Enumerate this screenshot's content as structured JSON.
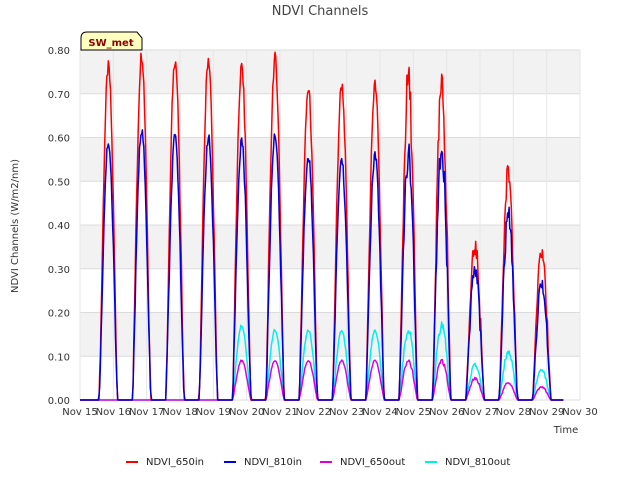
{
  "chart_data": {
    "type": "line",
    "title": "NDVI Channels",
    "xlabel": "Time",
    "ylabel": "NDVI Channels (W/m2/nm)",
    "badge": "SW_met",
    "ylim": [
      0,
      0.8
    ],
    "xlim": [
      15,
      30
    ],
    "grid": true,
    "legend_position": "bottom",
    "x_ticks": [
      "Nov 15",
      "Nov 16",
      "Nov 17",
      "Nov 18",
      "Nov 19",
      "Nov 20",
      "Nov 21",
      "Nov 22",
      "Nov 23",
      "Nov 24",
      "Nov 25",
      "Nov 26",
      "Nov 27",
      "Nov 28",
      "Nov 29",
      "Nov 30"
    ],
    "y_ticks": [
      "0.00",
      "0.10",
      "0.20",
      "0.30",
      "0.40",
      "0.50",
      "0.60",
      "0.70",
      "0.80"
    ],
    "days": [
      15.85,
      16.85,
      17.85,
      18.85,
      19.85,
      20.85,
      21.85,
      22.85,
      23.85,
      24.85,
      25.85,
      26.85,
      27.85,
      28.85
    ],
    "series": [
      {
        "name": "NDVI_650in",
        "color": "#ff0000",
        "peaks": [
          0.76,
          0.79,
          0.78,
          0.78,
          0.76,
          0.78,
          0.71,
          0.72,
          0.72,
          0.73,
          0.71,
          0.35,
          0.52,
          0.34
        ]
      },
      {
        "name": "NDVI_810in",
        "color": "#0000dd",
        "peaks": [
          0.59,
          0.62,
          0.6,
          0.6,
          0.59,
          0.61,
          0.56,
          0.55,
          0.56,
          0.56,
          0.58,
          0.3,
          0.42,
          0.27
        ]
      },
      {
        "name": "NDVI_650out",
        "color": "#dd00dd",
        "peaks": [
          0.0,
          0.0,
          0.0,
          0.0,
          0.09,
          0.09,
          0.09,
          0.09,
          0.09,
          0.09,
          0.09,
          0.05,
          0.04,
          0.03
        ]
      },
      {
        "name": "NDVI_810out",
        "color": "#00eeee",
        "peaks": [
          0.0,
          0.0,
          0.0,
          0.0,
          0.17,
          0.16,
          0.16,
          0.16,
          0.16,
          0.16,
          0.17,
          0.08,
          0.11,
          0.07
        ]
      }
    ]
  }
}
